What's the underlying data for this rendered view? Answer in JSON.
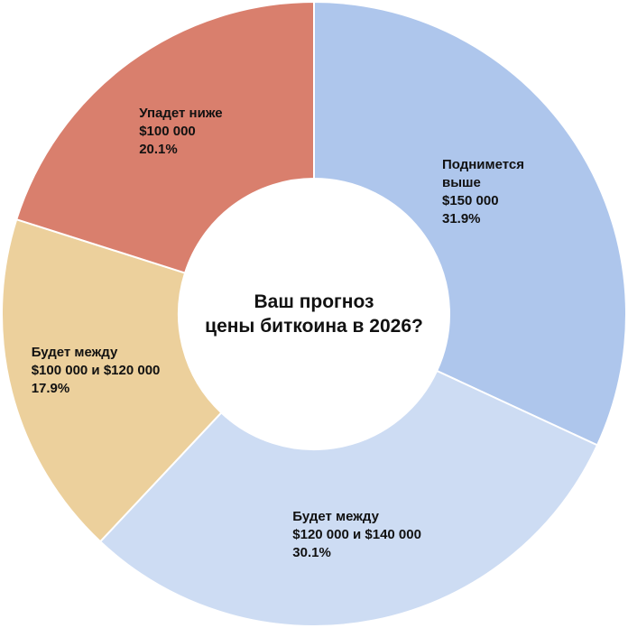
{
  "chart_data": {
    "type": "donut",
    "title": "Ваш прогноз\nцены биткоина в 2026?",
    "categories": [
      "Поднимется выше\n$150 000",
      "Будет между\n$120 000 и $140 000",
      "Будет между\n$100 000 и $120 000",
      "Упадет ниже\n$100 000"
    ],
    "values": [
      31.9,
      30.1,
      17.9,
      20.1
    ],
    "value_labels": [
      "31.9%",
      "30.1%",
      "17.9%",
      "20.1%"
    ],
    "colors": [
      "#aec6ec",
      "#cddcf3",
      "#ecd09c",
      "#d97f6d"
    ]
  }
}
